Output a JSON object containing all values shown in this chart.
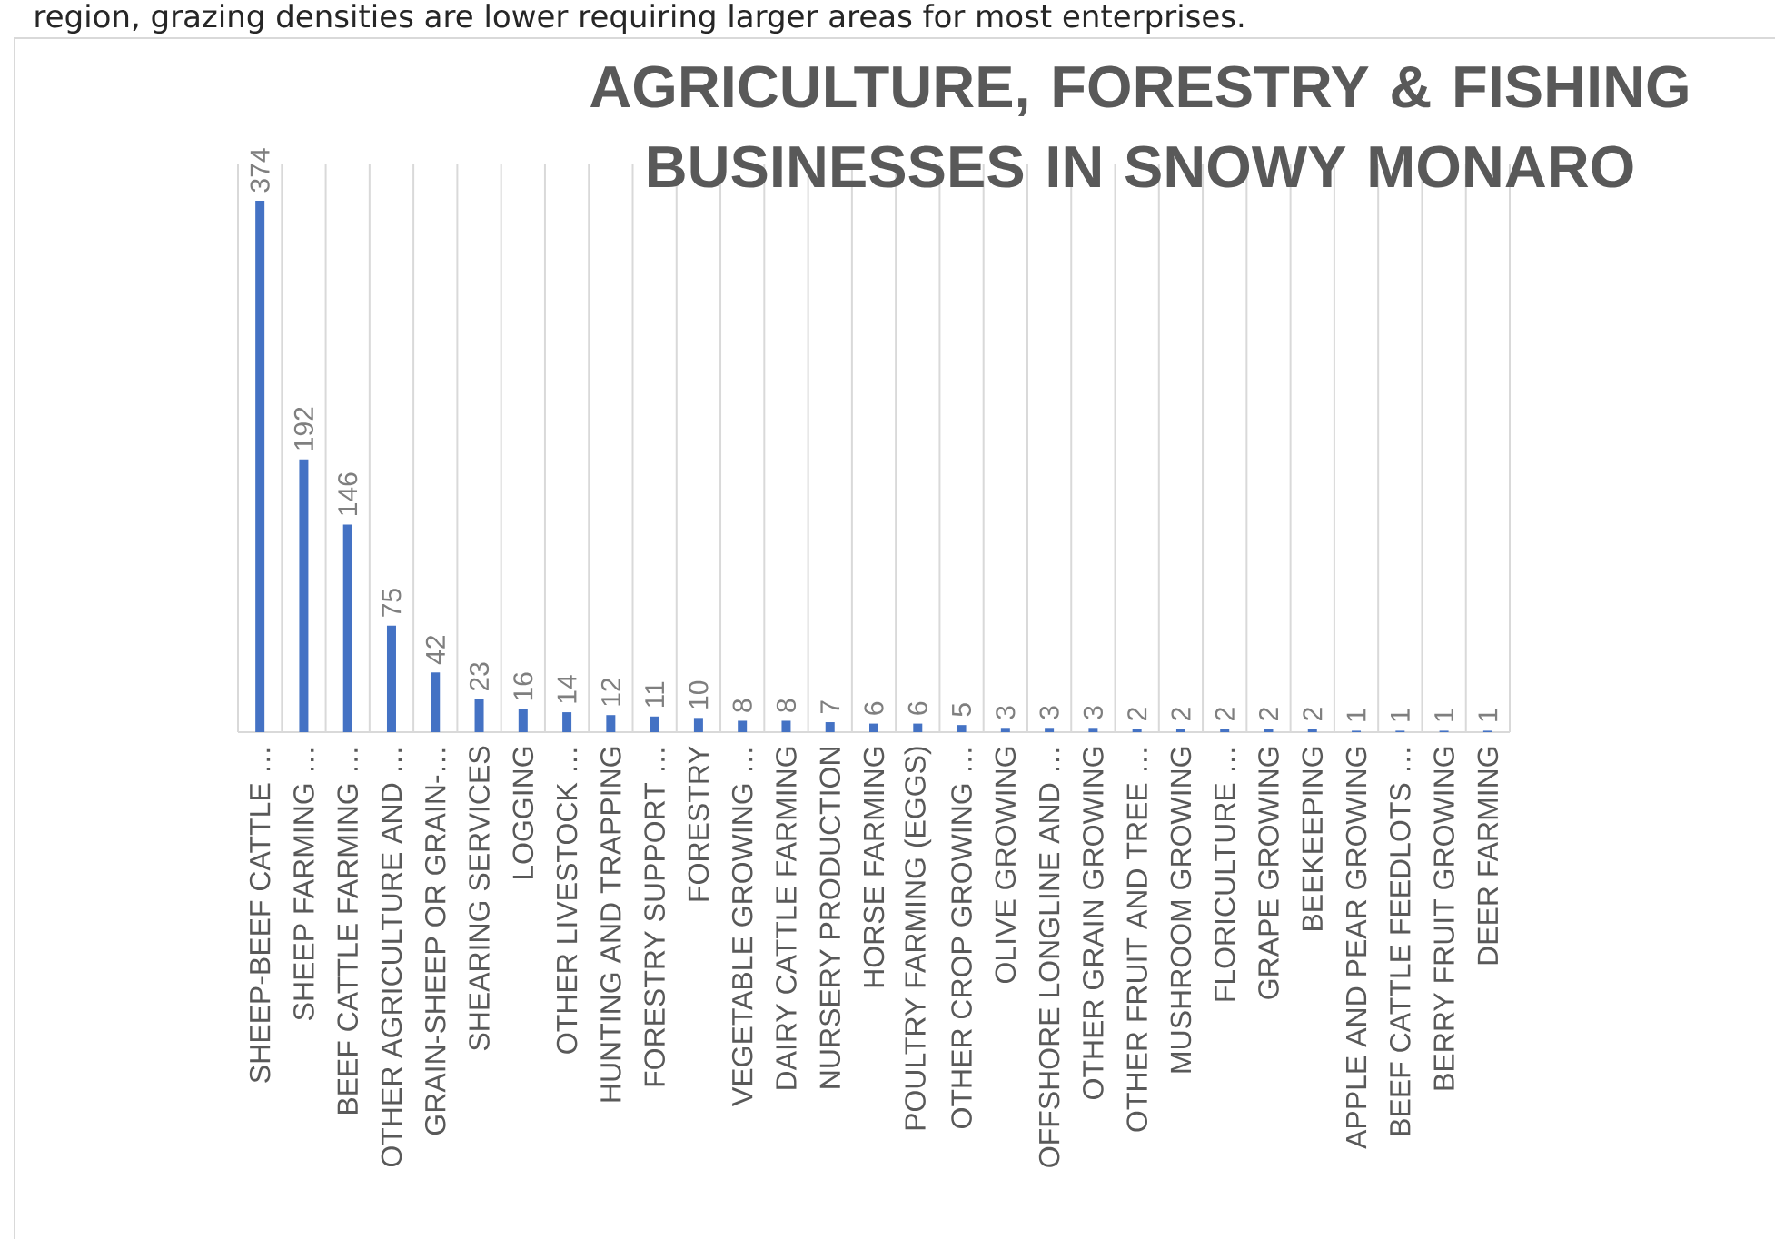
{
  "chart_data": {
    "type": "bar",
    "title": "AGRICULTURE, FORESTRY & FISHING BUSINESSES IN SNOWY MONARO",
    "categories": [
      "SHEEP-BEEF CATTLE …",
      "SHEEP FARMING …",
      "BEEF CATTLE FARMING …",
      "OTHER AGRICULTURE AND …",
      "GRAIN-SHEEP OR GRAIN-…",
      "SHEARING SERVICES",
      "LOGGING",
      "OTHER LIVESTOCK …",
      "HUNTING AND TRAPPING",
      "FORESTRY SUPPORT …",
      "FORESTRY",
      "VEGETABLE GROWING …",
      "DAIRY CATTLE FARMING",
      "NURSERY PRODUCTION",
      "HORSE FARMING",
      "POULTRY FARMING (EGGS)",
      "OTHER CROP GROWING …",
      "OLIVE GROWING",
      "OFFSHORE LONGLINE AND …",
      "OTHER GRAIN GROWING",
      "OTHER FRUIT AND TREE …",
      "MUSHROOM GROWING",
      "FLORICULTURE …",
      "GRAPE GROWING",
      "BEEKEEPING",
      "APPLE AND PEAR GROWING",
      "BEEF CATTLE FEEDLOTS …",
      "BERRY FRUIT GROWING",
      "DEER FARMING"
    ],
    "values": [
      374,
      192,
      146,
      75,
      42,
      23,
      16,
      14,
      12,
      11,
      10,
      8,
      8,
      7,
      6,
      6,
      5,
      3,
      3,
      3,
      2,
      2,
      2,
      2,
      2,
      1,
      1,
      1,
      1
    ],
    "color": "#4472c4",
    "data_labels": true,
    "grid": "x",
    "annotations": [
      "region, grazing densities are lower requiring larger areas for most enterprises."
    ]
  }
}
